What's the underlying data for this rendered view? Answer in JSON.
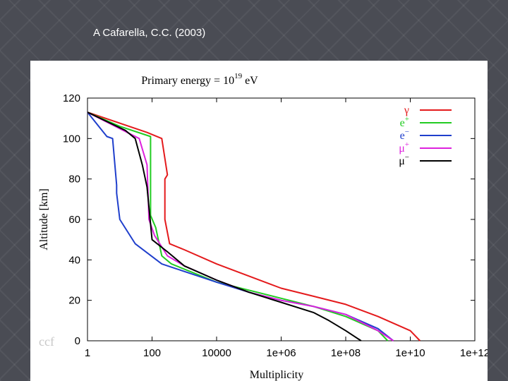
{
  "slide": {
    "title": "A Cafarella, C.C. (2003)",
    "watermark": "ccf"
  },
  "chart_data": {
    "type": "line",
    "title_text": "Primary energy = 10",
    "title_exponent": "19",
    "title_unit": " eV",
    "xlabel": "Multiplicity",
    "ylabel": "Altitude [km]",
    "x_scale": "log",
    "xlim": [
      1,
      1000000000000
    ],
    "ylim": [
      0,
      120
    ],
    "x_ticks": [
      1,
      100,
      10000,
      1000000,
      100000000,
      10000000000,
      1000000000000
    ],
    "x_tick_labels": [
      "1",
      "100",
      "10000",
      "1e+06",
      "1e+08",
      "1e+10",
      "1e+12"
    ],
    "y_ticks": [
      0,
      20,
      40,
      60,
      80,
      100,
      120
    ],
    "y_tick_labels": [
      "0",
      "20",
      "40",
      "60",
      "80",
      "100",
      "120"
    ],
    "legend_position": "top-right",
    "series": [
      {
        "name": "γ",
        "sign": "",
        "color": "#e41a1c",
        "points": [
          [
            1,
            113
          ],
          [
            70,
            103
          ],
          [
            200,
            100
          ],
          [
            300,
            82
          ],
          [
            250,
            80
          ],
          [
            250,
            60
          ],
          [
            350,
            48
          ],
          [
            1000,
            45
          ],
          [
            10000,
            38
          ],
          [
            100000,
            32
          ],
          [
            1000000,
            26
          ],
          [
            10000000,
            22
          ],
          [
            100000000,
            18
          ],
          [
            1000000000,
            12
          ],
          [
            10000000000,
            5
          ],
          [
            20000000000,
            0
          ]
        ]
      },
      {
        "name": "e",
        "sign": "+",
        "color": "#22cc22",
        "points": [
          [
            1,
            113
          ],
          [
            10,
            106
          ],
          [
            90,
            101
          ],
          [
            90,
            62
          ],
          [
            130,
            56
          ],
          [
            200,
            42
          ],
          [
            400,
            38
          ],
          [
            10000,
            29
          ],
          [
            100000,
            25
          ],
          [
            1000000,
            21
          ],
          [
            10000000,
            17
          ],
          [
            100000000,
            12
          ],
          [
            1000000000,
            5
          ],
          [
            2000000000,
            0
          ]
        ]
      },
      {
        "name": "e",
        "sign": "−",
        "color": "#1f3fcc",
        "points": [
          [
            1,
            113
          ],
          [
            4,
            101
          ],
          [
            6,
            100
          ],
          [
            8,
            77
          ],
          [
            8,
            73
          ],
          [
            10,
            60
          ],
          [
            30,
            48
          ],
          [
            200,
            38
          ],
          [
            10000,
            29
          ],
          [
            100000,
            24
          ],
          [
            1000000,
            20
          ],
          [
            10000000,
            17
          ],
          [
            100000000,
            13
          ],
          [
            1000000000,
            6
          ],
          [
            3000000000,
            0
          ]
        ]
      },
      {
        "name": "μ",
        "sign": "+",
        "color": "#dd22dd",
        "points": [
          [
            1,
            113
          ],
          [
            40,
            100
          ],
          [
            70,
            87
          ],
          [
            80,
            60
          ],
          [
            120,
            52
          ],
          [
            300,
            42
          ],
          [
            1000,
            37
          ],
          [
            10000,
            30
          ],
          [
            100000,
            24
          ],
          [
            1000000,
            20
          ],
          [
            10000000,
            17
          ],
          [
            100000000,
            13
          ],
          [
            1000000000,
            5
          ],
          [
            3000000000,
            0
          ]
        ]
      },
      {
        "name": "μ",
        "sign": "−",
        "color": "#000000",
        "points": [
          [
            1,
            113
          ],
          [
            15,
            104
          ],
          [
            30,
            100
          ],
          [
            50,
            87
          ],
          [
            70,
            76
          ],
          [
            100,
            50
          ],
          [
            300,
            44
          ],
          [
            1000,
            37
          ],
          [
            10000,
            30
          ],
          [
            100000,
            24
          ],
          [
            1000000,
            19
          ],
          [
            10000000,
            14
          ],
          [
            30000000,
            10
          ],
          [
            100000000,
            5
          ],
          [
            300000000,
            0
          ]
        ]
      }
    ]
  }
}
